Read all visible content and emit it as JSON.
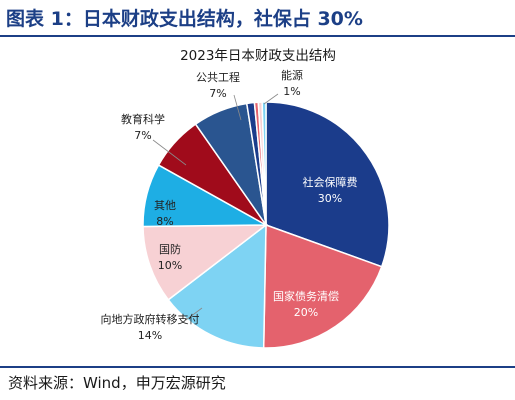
{
  "header": {
    "figure_title": "图表 1：日本财政支出结构，社保占 30%"
  },
  "footer": {
    "source": "资料来源：Wind，申万宏源研究"
  },
  "chart_data": {
    "type": "pie",
    "title": "2023年日本财政支出结构",
    "unit": "%",
    "slices": [
      {
        "label": "社会保障费",
        "value_text": "30%",
        "value": 30.5,
        "color": "#1b3c8b"
      },
      {
        "label": "国家债务清偿",
        "value_text": "20%",
        "value": 19.8,
        "color": "#e4626d"
      },
      {
        "label": "向地方政府转移支付",
        "value_text": "14%",
        "value": 14.3,
        "color": "#7ed3f3"
      },
      {
        "label": "国防",
        "value_text": "10%",
        "value": 10.2,
        "color": "#f7d1d4"
      },
      {
        "label": "其他",
        "value_text": "8%",
        "value": 8.3,
        "color": "#1eaee4"
      },
      {
        "label": "教育科学",
        "value_text": "7%",
        "value": 7.2,
        "color": "#a00b1b"
      },
      {
        "label": "公共工程",
        "value_text": "7%",
        "value": 7.2,
        "color": "#2a5590"
      },
      {
        "label": "",
        "value_text": "",
        "value": 1.0,
        "color": "#1b3c8b"
      },
      {
        "label": "",
        "value_text": "",
        "value": 0.5,
        "color": "#e4626d"
      },
      {
        "label": "",
        "value_text": "",
        "value": 0.5,
        "color": "#f7d1d4"
      },
      {
        "label": "能源",
        "value_text": "1%",
        "value": 0.5,
        "color": "#7ed3f3"
      }
    ]
  }
}
